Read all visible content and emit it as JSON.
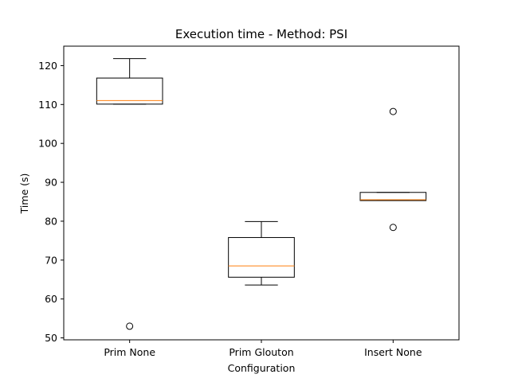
{
  "chart_data": {
    "type": "box",
    "title": "Execution time - Method: PSI",
    "xlabel": "Configuration",
    "ylabel": "Time (s)",
    "ylim": [
      49.5,
      125
    ],
    "yticks": [
      50,
      60,
      70,
      80,
      90,
      100,
      110,
      120
    ],
    "grid": false,
    "categories": [
      "Prim None",
      "Prim Glouton",
      "Insert None"
    ],
    "boxes": [
      {
        "category": "Prim None",
        "whisker_low": 110.1,
        "q1": 110.1,
        "median": 111.0,
        "q3": 116.8,
        "whisker_high": 121.8,
        "outliers": [
          53.0
        ]
      },
      {
        "category": "Prim Glouton",
        "whisker_low": 63.6,
        "q1": 65.6,
        "median": 68.5,
        "q3": 75.8,
        "whisker_high": 79.9,
        "outliers": []
      },
      {
        "category": "Insert None",
        "whisker_low": 85.3,
        "q1": 85.3,
        "median": 85.5,
        "q3": 87.4,
        "whisker_high": 87.4,
        "outliers": [
          108.2,
          78.4
        ]
      }
    ],
    "colors": {
      "box": "#000000",
      "median": "#ff7f0e"
    }
  }
}
